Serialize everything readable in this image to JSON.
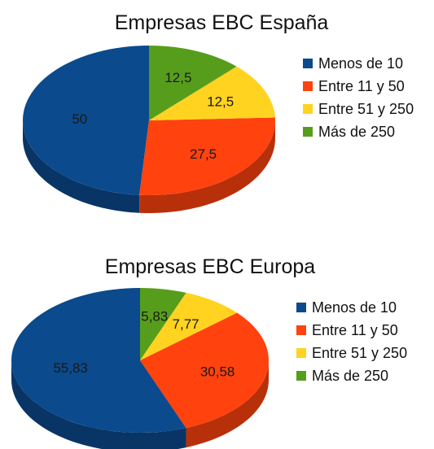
{
  "colors": {
    "menos_de_10": "#0b4a8c",
    "entre_11_y_50": "#ff420e",
    "entre_51_y_250": "#ffd320",
    "mas_de_250": "#579d1c"
  },
  "chart_data": [
    {
      "type": "pie",
      "style": "3d",
      "title": "Empresas EBC España",
      "legend_position": "right",
      "categories": [
        "Menos de 10",
        "Entre 11 y 50",
        "Entre 51 y 250",
        "Más de 250"
      ],
      "values": [
        50,
        27.5,
        12.5,
        12.5
      ],
      "data_labels": [
        "50",
        "27,5",
        "12,5",
        "12,5"
      ]
    },
    {
      "type": "pie",
      "style": "3d",
      "title": "Empresas EBC Europa",
      "legend_position": "right",
      "categories": [
        "Menos de 10",
        "Entre 11 y 50",
        "Entre 51 y 250",
        "Más de 250"
      ],
      "values": [
        55.83,
        30.58,
        7.77,
        5.83
      ],
      "data_labels": [
        "55,83",
        "30,58",
        "7,77",
        "5,83"
      ]
    }
  ]
}
